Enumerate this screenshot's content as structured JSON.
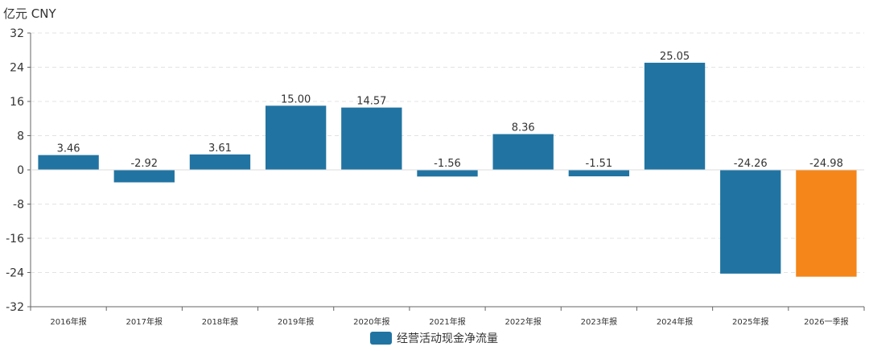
{
  "chart_data": {
    "type": "bar",
    "unit_label": "亿元  CNY",
    "categories": [
      "2016年报",
      "2017年报",
      "2018年报",
      "2019年报",
      "2020年报",
      "2021年报",
      "2022年报",
      "2023年报",
      "2024年报",
      "2025年报",
      "2026一季报"
    ],
    "series": [
      {
        "name": "经营活动现金净流量",
        "values": [
          3.46,
          -2.92,
          3.61,
          15.0,
          14.57,
          -1.56,
          8.36,
          -1.51,
          25.05,
          -24.26,
          -24.98
        ],
        "value_labels": [
          "3.46",
          "-2.92",
          "3.61",
          "15.00",
          "14.57",
          "-1.56",
          "8.36",
          "-1.51",
          "25.05",
          "-24.26",
          "-24.98"
        ]
      }
    ],
    "colors": {
      "default": "#2174a2",
      "highlight": "#f5861a",
      "highlight_index": 10
    },
    "yticks": [
      32,
      24,
      16,
      8,
      0,
      -8,
      -16,
      -24,
      -32
    ],
    "ylim": [
      -32,
      32
    ],
    "grid": true,
    "legend_position": "bottom-center"
  }
}
